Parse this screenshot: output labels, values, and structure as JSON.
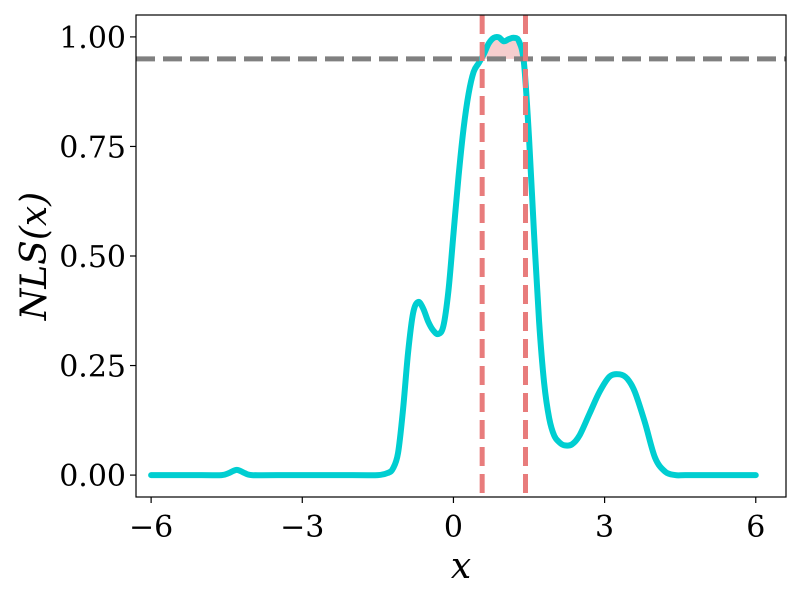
{
  "chart_data": {
    "type": "line",
    "title": "",
    "xlabel": "x",
    "ylabel": "NLS(x)",
    "xlim": [
      -6.3,
      6.6
    ],
    "ylim": [
      -0.05,
      1.05
    ],
    "grid": false,
    "legend": "none",
    "xticks": [
      -6,
      -3,
      0,
      3,
      6
    ],
    "xtick_labels": [
      "−6",
      "−3",
      "0",
      "3",
      "6"
    ],
    "yticks": [
      0.0,
      0.25,
      0.5,
      0.75,
      1.0
    ],
    "ytick_labels": [
      "0.00",
      "0.25",
      "0.50",
      "0.75",
      "1.00"
    ],
    "series": [
      {
        "color": "#00CED1",
        "x": [
          -6.0,
          -5.0,
          -4.6,
          -4.45,
          -4.3,
          -4.15,
          -4.0,
          -3.5,
          -2.0,
          -1.5,
          -1.3,
          -1.2,
          -1.1,
          -1.0,
          -0.9,
          -0.8,
          -0.7,
          -0.6,
          -0.5,
          -0.4,
          -0.3,
          -0.2,
          -0.1,
          0.0,
          0.1,
          0.2,
          0.3,
          0.4,
          0.5,
          0.6,
          0.7,
          0.8,
          0.9,
          1.0,
          1.1,
          1.2,
          1.3,
          1.4,
          1.5,
          1.6,
          1.7,
          1.8,
          1.9,
          2.0,
          2.1,
          2.2,
          2.35,
          2.5,
          2.7,
          2.9,
          3.1,
          3.3,
          3.45,
          3.6,
          3.8,
          4.0,
          4.2,
          4.4,
          4.6,
          5.0,
          6.0
        ],
        "y": [
          0.0,
          0.0,
          0.0,
          0.005,
          0.012,
          0.005,
          0.0,
          0.0,
          0.0,
          0.0,
          0.005,
          0.015,
          0.05,
          0.15,
          0.28,
          0.37,
          0.395,
          0.38,
          0.35,
          0.33,
          0.322,
          0.34,
          0.42,
          0.55,
          0.68,
          0.79,
          0.87,
          0.92,
          0.94,
          0.96,
          0.985,
          0.998,
          0.999,
          0.99,
          0.995,
          0.998,
          0.99,
          0.94,
          0.77,
          0.55,
          0.35,
          0.21,
          0.13,
          0.09,
          0.075,
          0.068,
          0.07,
          0.09,
          0.14,
          0.19,
          0.225,
          0.23,
          0.22,
          0.19,
          0.12,
          0.04,
          0.008,
          0.0,
          0.0,
          0.0,
          0.0
        ]
      }
    ],
    "annotations": {
      "hline": {
        "y": 0.95,
        "color": "#808080",
        "style": "dashed"
      },
      "vlines": [
        {
          "x": 0.57,
          "color": "#E87C7C",
          "style": "dashed"
        },
        {
          "x": 1.43,
          "color": "#E87C7C",
          "style": "dashed"
        }
      ],
      "shaded_region": {
        "x_from": 0.57,
        "x_to": 1.43,
        "above_y": 0.95,
        "color": "#F5C6C6"
      }
    }
  }
}
